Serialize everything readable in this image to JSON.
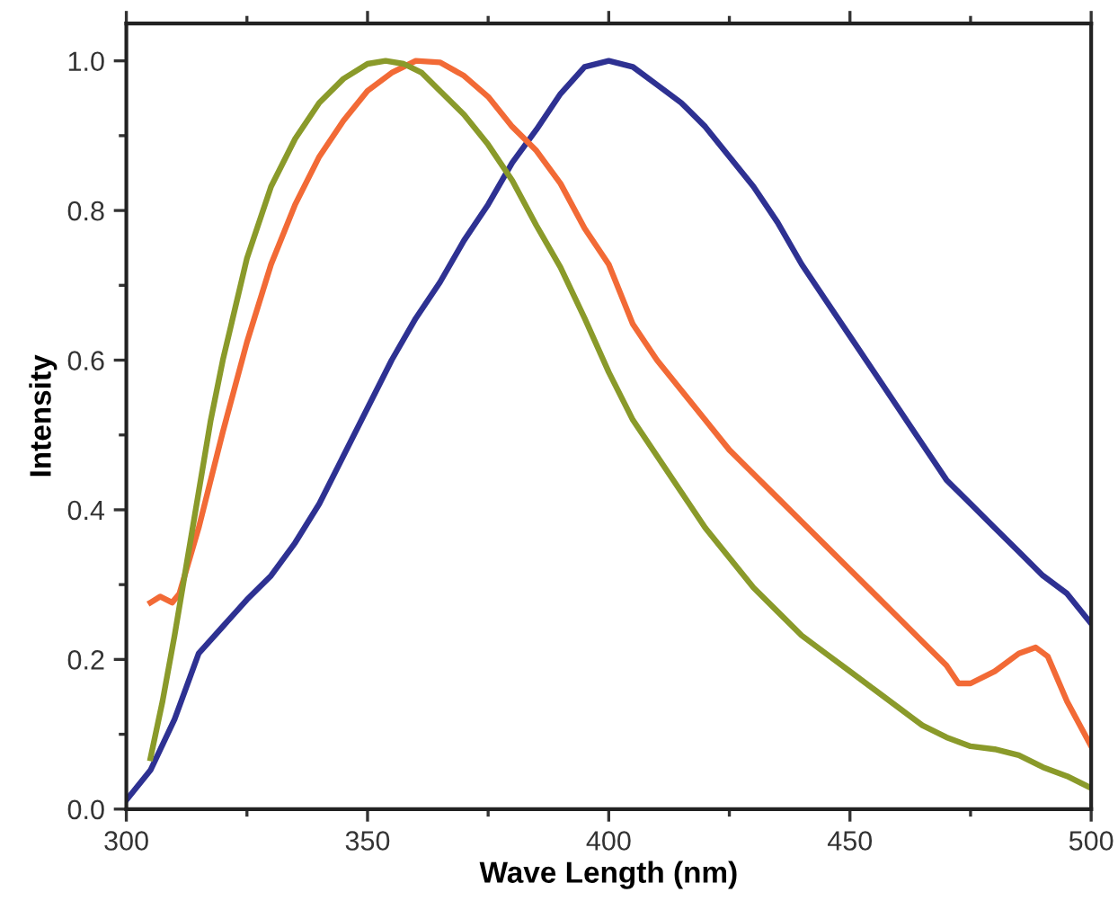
{
  "chart_data": {
    "type": "line",
    "xlabel": "Wave Length (nm)",
    "ylabel": "Intensity",
    "xlim": [
      300,
      500
    ],
    "ylim": [
      0,
      1.05
    ],
    "xticks": [
      300,
      350,
      400,
      450,
      500
    ],
    "yticks": [
      {
        "value": 0,
        "label": "0.0"
      },
      0.2,
      0.4,
      0.6,
      0.8,
      {
        "value": 1,
        "label": "1.0"
      }
    ],
    "grid": false,
    "marker": "none",
    "line_style": "solid",
    "series": [
      {
        "color": "#2e3192",
        "x": [
          300,
          305,
          310,
          315,
          320,
          325,
          330,
          335,
          340,
          345,
          350,
          355,
          360,
          365,
          370,
          375,
          380,
          385,
          390,
          395,
          400,
          405,
          410,
          415,
          420,
          425,
          430,
          435,
          440,
          445,
          450,
          455,
          460,
          465,
          470,
          475,
          480,
          485,
          490,
          495,
          500
        ],
        "values": [
          0.012,
          0.052,
          0.12,
          0.208,
          0.244,
          0.28,
          0.312,
          0.356,
          0.408,
          0.472,
          0.536,
          0.6,
          0.656,
          0.704,
          0.76,
          0.808,
          0.864,
          0.908,
          0.956,
          0.992,
          1.0,
          0.992,
          0.968,
          0.944,
          0.912,
          0.872,
          0.832,
          0.784,
          0.728,
          0.68,
          0.632,
          0.584,
          0.536,
          0.488,
          0.44,
          0.408,
          0.376,
          0.344,
          0.312,
          0.288,
          0.248
        ]
      },
      {
        "color": "#f26a36",
        "x": [
          305,
          307,
          309.5,
          311,
          315,
          320,
          325,
          330,
          335,
          340,
          345,
          350,
          355,
          360,
          365,
          370,
          375,
          380,
          385,
          390,
          395,
          400,
          405,
          410,
          415,
          420,
          425,
          430,
          435,
          440,
          445,
          450,
          455,
          460,
          465,
          470,
          472.5,
          475,
          480,
          485,
          488.5,
          491,
          495,
          500
        ],
        "values": [
          0.276,
          0.284,
          0.276,
          0.288,
          0.376,
          0.504,
          0.624,
          0.728,
          0.808,
          0.872,
          0.92,
          0.96,
          0.984,
          1.0,
          0.998,
          0.98,
          0.952,
          0.912,
          0.88,
          0.836,
          0.776,
          0.728,
          0.648,
          0.6,
          0.56,
          0.52,
          0.48,
          0.448,
          0.416,
          0.384,
          0.352,
          0.32,
          0.288,
          0.256,
          0.224,
          0.192,
          0.168,
          0.168,
          0.184,
          0.208,
          0.216,
          0.204,
          0.144,
          0.084
        ]
      },
      {
        "color": "#8a9a2a",
        "x": [
          305,
          307.5,
          310,
          312.5,
          315,
          317.5,
          320,
          325,
          330,
          335,
          340,
          345,
          350,
          353.75,
          357.5,
          361.25,
          365,
          370,
          375,
          380,
          385,
          390,
          395,
          400,
          405,
          410,
          415,
          420,
          425,
          430,
          435,
          440,
          445,
          450,
          455,
          460,
          465,
          470,
          475,
          480,
          485,
          490,
          495,
          500
        ],
        "values": [
          0.068,
          0.144,
          0.232,
          0.328,
          0.424,
          0.52,
          0.6,
          0.736,
          0.832,
          0.896,
          0.944,
          0.976,
          0.996,
          1.0,
          0.996,
          0.984,
          0.96,
          0.928,
          0.888,
          0.84,
          0.78,
          0.724,
          0.656,
          0.584,
          0.52,
          0.472,
          0.424,
          0.376,
          0.336,
          0.296,
          0.264,
          0.232,
          0.208,
          0.184,
          0.16,
          0.136,
          0.112,
          0.096,
          0.084,
          0.08,
          0.072,
          0.056,
          0.044,
          0.028
        ]
      }
    ]
  }
}
